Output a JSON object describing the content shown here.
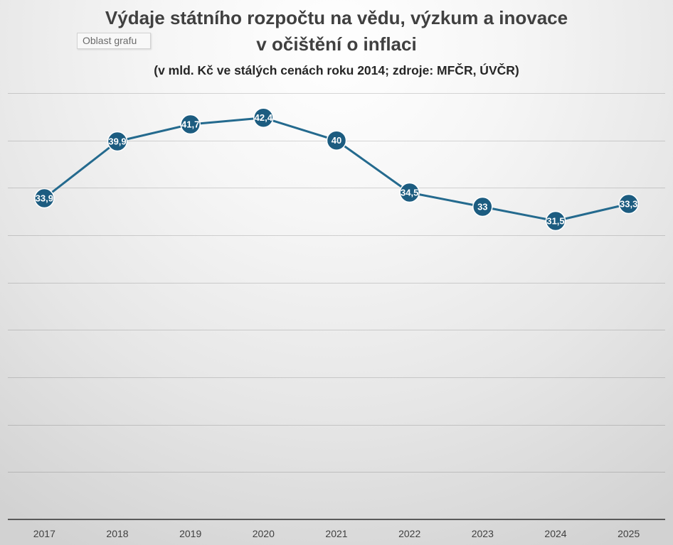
{
  "tooltip": {
    "text": "Oblast grafu"
  },
  "chart_data": {
    "type": "line",
    "title": "Výdaje státního rozpočtu na vědu, výzkum a inovace\nv očištění o inflaci",
    "subtitle": "(v mld. Kč ve stálých cenách roku 2014; zdroje: MFČR, ÚVČR)",
    "xlabel": "",
    "ylabel": "",
    "categories": [
      "2017",
      "2018",
      "2019",
      "2020",
      "2021",
      "2022",
      "2023",
      "2024",
      "2025"
    ],
    "series": [
      {
        "values": [
          33.9,
          39.9,
          41.7,
          42.4,
          40,
          34.5,
          33,
          31.5,
          33.3
        ],
        "data_labels": [
          "33,9",
          "39,9",
          "41,7",
          "42,4",
          "40",
          "34,5",
          "33",
          "31,5",
          "33,3"
        ],
        "line_color": "#246a8e",
        "marker": "circle",
        "marker_color": "#1c5c80",
        "label_color": "#ffffff"
      }
    ],
    "ylim": [
      0,
      45
    ],
    "y_major_unit": 5,
    "y_tick_labels": false,
    "grid": true,
    "legend": "none"
  }
}
